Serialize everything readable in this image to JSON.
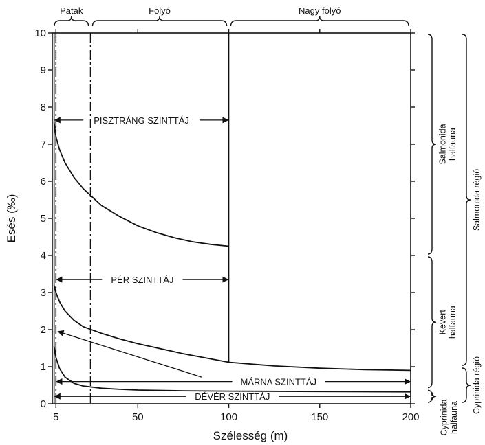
{
  "chart_data": {
    "type": "line",
    "xlabel": "Szélesség (m)",
    "ylabel": "Esés (‰)",
    "x_ticks": [
      "5",
      "50",
      "100",
      "150",
      "200"
    ],
    "y_ticks": [
      "0",
      "1",
      "2",
      "3",
      "4",
      "5",
      "6",
      "7",
      "8",
      "9",
      "10"
    ],
    "xlim": [
      3,
      200
    ],
    "ylim": [
      0,
      10
    ],
    "grid": false,
    "width_classes": [
      {
        "label": "Patak",
        "from": 3,
        "to": 24
      },
      {
        "label": "Folyó",
        "from": 24,
        "to": 100
      },
      {
        "label": "Nagy folyó",
        "from": 100,
        "to": 200
      }
    ],
    "series": [
      {
        "x": [
          4,
          5,
          7,
          10,
          15,
          20,
          30,
          40,
          50,
          60,
          70,
          80,
          90,
          100
        ],
        "y": [
          7.6,
          7.2,
          6.85,
          6.5,
          6.1,
          5.8,
          5.35,
          5.05,
          4.8,
          4.62,
          4.48,
          4.37,
          4.3,
          4.25
        ]
      },
      {
        "x": [
          4,
          5,
          7,
          10,
          15,
          20,
          30,
          40,
          50,
          75,
          100,
          125,
          150,
          175,
          200
        ],
        "y": [
          3.2,
          3.0,
          2.75,
          2.5,
          2.25,
          2.08,
          1.9,
          1.75,
          1.62,
          1.35,
          1.12,
          1.02,
          0.96,
          0.92,
          0.9
        ]
      },
      {
        "x": [
          4,
          5,
          7,
          10,
          15,
          20,
          30,
          40,
          50,
          75,
          100,
          150,
          200
        ],
        "y": [
          1.55,
          1.25,
          0.95,
          0.72,
          0.55,
          0.48,
          0.42,
          0.39,
          0.37,
          0.35,
          0.34,
          0.33,
          0.32
        ]
      }
    ],
    "annotations": [
      {
        "text": "PISZTRÁNG SZINTTÁJ",
        "x": [
          4,
          100
        ],
        "y": 7.65
      },
      {
        "text": "PÉR SZINTTÁJ",
        "x": [
          5,
          100
        ],
        "y": 3.35
      },
      {
        "text": "MÁRNA SZINTTÁJ",
        "x": [
          5,
          200
        ],
        "y": 0.6
      },
      {
        "text": "DÉVÉR SZINTTÁJ",
        "x": [
          4,
          200
        ],
        "y": 0.2
      }
    ],
    "fauna": [
      {
        "lines": [
          "Salmonida",
          "halfauna"
        ],
        "y": [
          4.0,
          10.0
        ]
      },
      {
        "lines": [
          "Kevert",
          "halfauna"
        ],
        "y": [
          0.4,
          4.0
        ]
      },
      {
        "lines": [
          "Cyprinida",
          "halfauna"
        ],
        "y": [
          0,
          0.4
        ]
      }
    ],
    "regions": [
      {
        "text": "Salmonida régió",
        "y": [
          1.0,
          10.0
        ]
      },
      {
        "text": "Cyprinida régió",
        "y": [
          0,
          1.0
        ]
      }
    ]
  }
}
